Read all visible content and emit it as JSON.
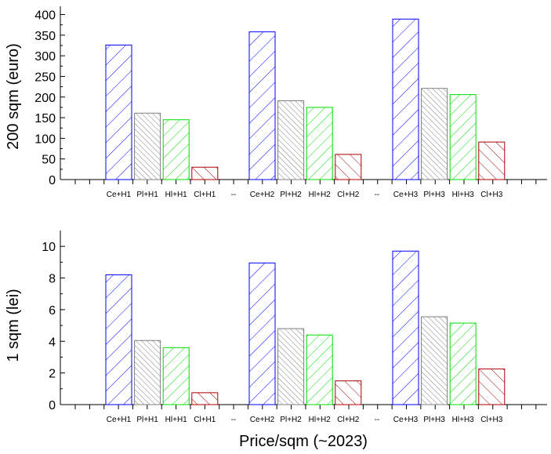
{
  "chart_data": [
    {
      "type": "bar",
      "ylabel": "200 sqm (euro)",
      "xlabel": "",
      "ylim": [
        0,
        420
      ],
      "yticks": [
        0,
        50,
        100,
        150,
        200,
        250,
        300,
        350,
        400
      ],
      "categories": [
        "Ce+H1",
        "Pl+H1",
        "Hl+H1",
        "Cl+H1",
        "--",
        "Ce+H2",
        "Pl+H2",
        "Hl+H2",
        "Cl+H2",
        "--",
        "Ce+H3",
        "Pl+H3",
        "Hl+H3",
        "Cl+H3"
      ],
      "values": [
        326,
        161,
        145,
        30,
        null,
        358,
        191,
        175,
        61,
        null,
        389,
        221,
        206,
        91
      ],
      "grid": false,
      "legend": "none"
    },
    {
      "type": "bar",
      "ylabel": "1 sqm (lei)",
      "xlabel": "Price/sqm (~2023)",
      "ylim": [
        0,
        11
      ],
      "yticks": [
        0,
        2,
        4,
        6,
        8,
        10
      ],
      "categories": [
        "Ce+H1",
        "Pl+H1",
        "Hl+H1",
        "Cl+H1",
        "--",
        "Ce+H2",
        "Pl+H2",
        "Hl+H2",
        "Cl+H2",
        "--",
        "Ce+H3",
        "Pl+H3",
        "Hl+H3",
        "Cl+H3"
      ],
      "values": [
        8.2,
        4.05,
        3.6,
        0.75,
        null,
        8.95,
        4.8,
        4.4,
        1.5,
        null,
        9.7,
        5.55,
        5.15,
        2.25
      ],
      "grid": false,
      "legend": "none"
    }
  ],
  "colors": {
    "Ce": "#0000ff",
    "Pl": "#808080",
    "Hl": "#00dd00",
    "Cl": "#aa0000"
  }
}
